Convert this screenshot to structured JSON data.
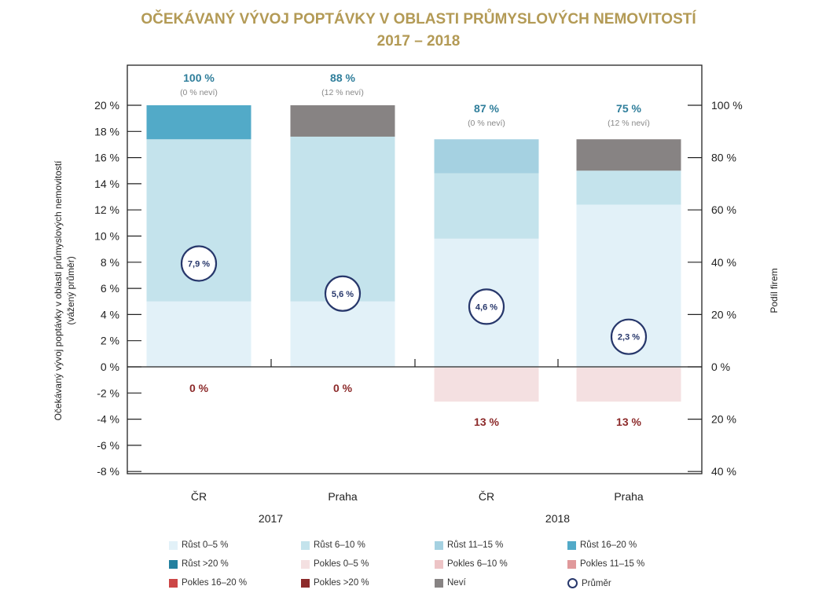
{
  "chart_data": {
    "type": "bar",
    "stacked": true,
    "title": "OČEKÁVANÝ VÝVOJ POPTÁVKY V OBLASTI PRŮMYSLOVÝCH NEMOVITOSTÍ",
    "subtitle": "2017 – 2018",
    "ylabel_left": "Očekávaný vývoj poptávky v oblasti průmyslových nemovitostí",
    "ylabel_left_sub": "(vážený průměr)",
    "ylabel_right": "Podíl firem",
    "left_axis": {
      "range": [
        -8,
        20
      ],
      "ticks": [
        "20 %",
        "18 %",
        "16 %",
        "14 %",
        "12 %",
        "10 %",
        "8 %",
        "6 %",
        "4 %",
        "2 %",
        "0 %",
        "-2 %",
        "-4 %",
        "-6 %",
        "-8 %"
      ],
      "tick_values": [
        20,
        18,
        16,
        14,
        12,
        10,
        8,
        6,
        4,
        2,
        0,
        -2,
        -4,
        -6,
        -8
      ]
    },
    "right_axis": {
      "range": [
        -40,
        100
      ],
      "ticks": [
        "100 %",
        "80 %",
        "60 %",
        "40 %",
        "20 %",
        "0 %",
        "20 %",
        "40 %"
      ],
      "tick_values": [
        100,
        80,
        60,
        40,
        20,
        0,
        -20,
        -40
      ]
    },
    "categories": [
      "ČR",
      "Praha",
      "ČR",
      "Praha"
    ],
    "groups": [
      {
        "label": "2017",
        "categories": [
          0,
          1
        ]
      },
      {
        "label": "2018",
        "categories": [
          2,
          3
        ]
      }
    ],
    "series": [
      {
        "name": "Růst 0–5 %",
        "color": "#e2f1f8",
        "values": [
          25,
          25,
          49,
          62
        ]
      },
      {
        "name": "Růst 6–10 %",
        "color": "#c4e3ec",
        "values": [
          62,
          63,
          25,
          13
        ]
      },
      {
        "name": "Růst 11–15 %",
        "color": "#a5d1e1",
        "values": [
          0,
          0,
          13,
          0
        ]
      },
      {
        "name": "Růst 16–20 %",
        "color": "#52aac8",
        "values": [
          13,
          0,
          0,
          0
        ]
      },
      {
        "name": "Růst >20 %",
        "color": "#23809f",
        "values": [
          0,
          0,
          0,
          0
        ]
      },
      {
        "name": "Pokles 0–5 %",
        "color": "#f4e0e1",
        "values": [
          0,
          0,
          -13,
          -13
        ]
      },
      {
        "name": "Pokles 6–10 %",
        "color": "#edc4c6",
        "values": [
          0,
          0,
          0,
          0
        ]
      },
      {
        "name": "Pokles 11–15 %",
        "color": "#e0999b",
        "values": [
          0,
          0,
          0,
          0
        ]
      },
      {
        "name": "Pokles 16–20 %",
        "color": "#cc4646",
        "values": [
          0,
          0,
          0,
          0
        ]
      },
      {
        "name": "Pokles >20 %",
        "color": "#8c2a2a",
        "values": [
          0,
          0,
          0,
          0
        ]
      },
      {
        "name": "Neví",
        "color": "#878383",
        "values": [
          0,
          12,
          0,
          12
        ]
      }
    ],
    "average": {
      "name": "Průměr",
      "values": [
        7.9,
        5.6,
        4.6,
        2.3
      ],
      "labels": [
        "7,9 %",
        "5,6 %",
        "4,6 %",
        "2,3 %"
      ]
    },
    "top_labels": [
      "100 %",
      "88 %",
      "87 %",
      "75 %"
    ],
    "top_sublabels": [
      "(0 % neví)",
      "(12 % neví)",
      "(0 % neví)",
      "(12 % neví)"
    ],
    "bottom_labels": [
      "0 %",
      "0 %",
      "13 %",
      "13 %"
    ],
    "grid": false,
    "legend_position": "bottom"
  },
  "colors": {
    "title": "#b39a55",
    "top_label": "#2f7e9b",
    "bottom_label": "#8c2a2a",
    "average_circle": "#27376b"
  }
}
